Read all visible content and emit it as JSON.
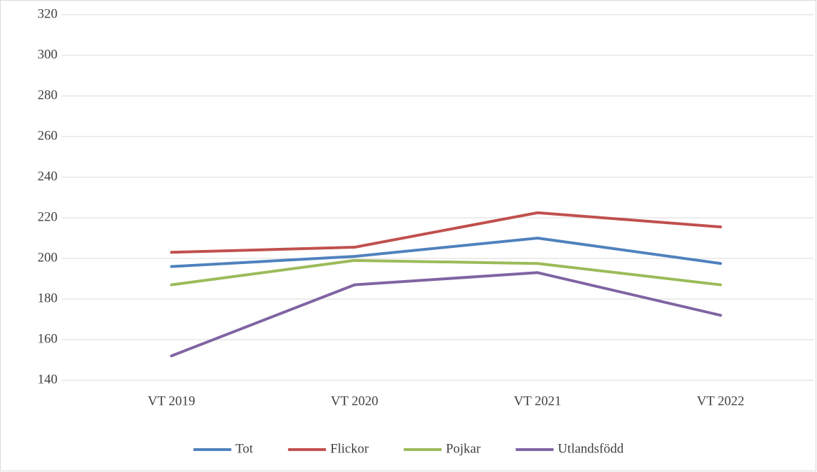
{
  "chart_data": {
    "type": "line",
    "categories": [
      "VT 2019",
      "VT 2020",
      "VT 2021",
      "VT 2022"
    ],
    "series": [
      {
        "name": "Tot",
        "color": "#4f81bd",
        "values": [
          196,
          201,
          210,
          197.5
        ]
      },
      {
        "name": "Flickor",
        "color": "#c0504d",
        "values": [
          203,
          205.5,
          222.5,
          215.5
        ]
      },
      {
        "name": "Pojkar",
        "color": "#9bbb59",
        "values": [
          187,
          199,
          197.5,
          187
        ]
      },
      {
        "name": "Utlandsfödd",
        "color": "#8064a2",
        "values": [
          152,
          187,
          193,
          172
        ]
      }
    ],
    "ylim": [
      140,
      320
    ],
    "yticks": [
      140,
      160,
      180,
      200,
      220,
      240,
      260,
      280,
      300,
      320
    ],
    "grid": true,
    "legend": "bottom"
  }
}
